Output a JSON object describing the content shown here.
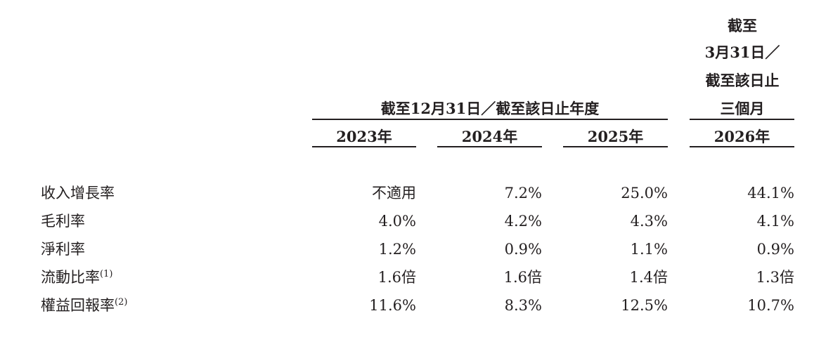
{
  "header": {
    "group_label": "截至12月31日／截至該日止年度",
    "last_column_label": [
      "截至",
      "3月31日／",
      "截至該日止",
      "三個月"
    ],
    "years": [
      "2023年",
      "2024年",
      "2025年",
      "2026年"
    ]
  },
  "table": {
    "rows": [
      {
        "label": "收入增長率",
        "note": null,
        "values": [
          "不適用",
          "7.2%",
          "25.0%",
          "44.1%"
        ]
      },
      {
        "label": "毛利率",
        "note": null,
        "values": [
          "4.0%",
          "4.2%",
          "4.3%",
          "4.1%"
        ]
      },
      {
        "label": "淨利率",
        "note": null,
        "values": [
          "1.2%",
          "0.9%",
          "1.1%",
          "0.9%"
        ]
      },
      {
        "label": "流動比率",
        "note": "(1)",
        "values": [
          "1.6倍",
          "1.6倍",
          "1.4倍",
          "1.3倍"
        ]
      },
      {
        "label": "權益回報率",
        "note": "(2)",
        "values": [
          "11.6%",
          "8.3%",
          "12.5%",
          "10.7%"
        ]
      }
    ]
  }
}
